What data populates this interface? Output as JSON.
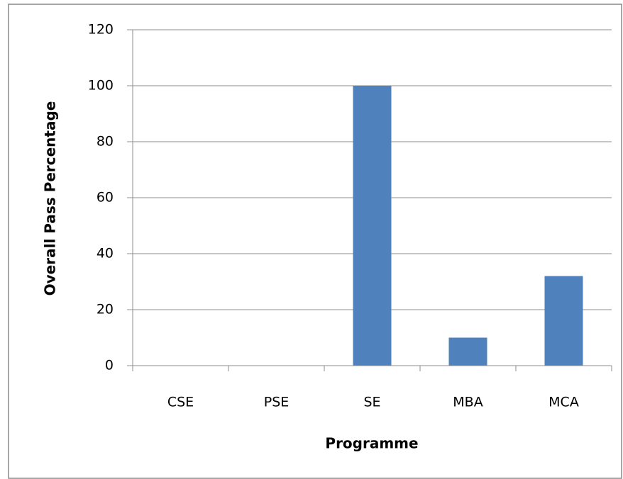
{
  "chart_data": {
    "type": "bar",
    "categories": [
      "CSE",
      "PSE",
      "SE",
      "MBA",
      "MCA"
    ],
    "values": [
      0,
      0,
      100,
      10,
      32
    ],
    "color": "#4f81bd",
    "x_label": "Programme",
    "y_label": "Overall Pass Percentage",
    "ylim": [
      0,
      120
    ],
    "yticks": [
      0,
      20,
      40,
      60,
      80,
      100,
      120
    ],
    "grid": true
  }
}
